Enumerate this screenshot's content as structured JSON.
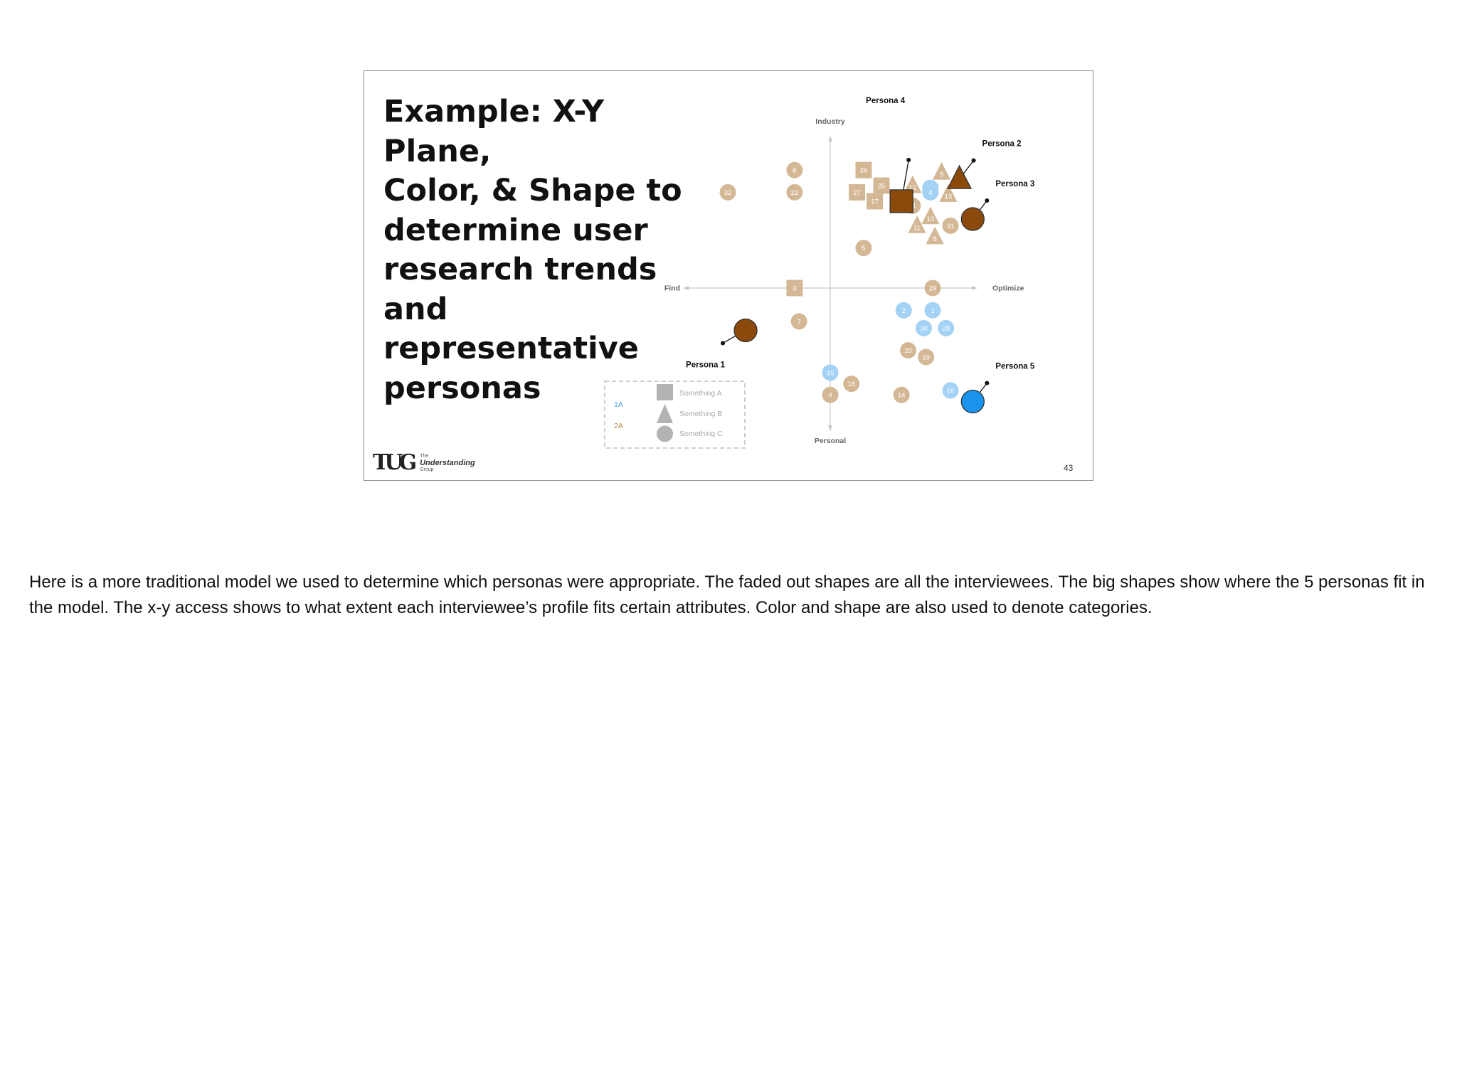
{
  "slide": {
    "title": "Example: X-Y Plane,\nColor, & Shape to\ndetermine user\nresearch trends\nand representative\npersonas",
    "page_number": "43",
    "logo": {
      "mark": "TUG",
      "line1": "The",
      "line2": "Understanding",
      "line3": "Group"
    }
  },
  "notes": "Here is a more traditional model we used to determine which personas were appropriate. The faded out shapes are all the interviewees. The big shapes show where the 5 personas fit in the model. The x-y access shows to what extent each interviewee’s profile fits certain attributes. Color and shape are also used to denote categories.",
  "colors": {
    "tan": "#d4b896",
    "light_blue": "#a3d2f5",
    "brown": "#8b4a0b",
    "bright_blue": "#1a93ee",
    "legend_gray": "#b3b3b3",
    "label_1a": "#4ba3e0",
    "label_2a": "#b8863f"
  },
  "chart_data": {
    "type": "scatter",
    "axes": {
      "top": "Industry",
      "bottom": "Personal",
      "left": "Find",
      "right": "Optimize"
    },
    "legend": {
      "colors": [
        {
          "label": "1A",
          "color": "light_blue"
        },
        {
          "label": "2A",
          "color": "tan"
        }
      ],
      "shapes": [
        {
          "shape": "square",
          "label": "Something A"
        },
        {
          "shape": "triangle",
          "label": "Something B"
        },
        {
          "shape": "circle",
          "label": "Something C"
        }
      ]
    },
    "points": [
      {
        "id": "32",
        "x": -4.6,
        "y": 4.3,
        "shape": "circle",
        "color": "tan"
      },
      {
        "id": "6",
        "x": -1.6,
        "y": 5.3,
        "shape": "circle",
        "color": "tan"
      },
      {
        "id": "22",
        "x": -1.6,
        "y": 4.3,
        "shape": "circle",
        "color": "tan"
      },
      {
        "id": "26",
        "x": 1.5,
        "y": 5.3,
        "shape": "square",
        "color": "tan"
      },
      {
        "id": "25",
        "x": 2.3,
        "y": 4.6,
        "shape": "square",
        "color": "tan"
      },
      {
        "id": "27",
        "x": 1.2,
        "y": 4.3,
        "shape": "square",
        "color": "tan"
      },
      {
        "id": "17",
        "x": 2.0,
        "y": 3.9,
        "shape": "square",
        "color": "tan"
      },
      {
        "id": "12",
        "x": 3.7,
        "y": 4.6,
        "shape": "triangle",
        "color": "tan"
      },
      {
        "id": "9",
        "x": 5.0,
        "y": 5.2,
        "shape": "triangle",
        "color": "tan"
      },
      {
        "id": "2",
        "x": 4.5,
        "y": 4.5,
        "shape": "circle",
        "color": "light_blue"
      },
      {
        "id": "4",
        "x": 4.5,
        "y": 4.3,
        "shape": "circle",
        "color": "light_blue"
      },
      {
        "id": "21",
        "x": 3.7,
        "y": 3.7,
        "shape": "circle",
        "color": "tan"
      },
      {
        "id": "13",
        "x": 5.3,
        "y": 4.2,
        "shape": "triangle",
        "color": "tan"
      },
      {
        "id": "10",
        "x": 4.5,
        "y": 3.2,
        "shape": "triangle",
        "color": "tan"
      },
      {
        "id": "11",
        "x": 3.9,
        "y": 2.8,
        "shape": "triangle",
        "color": "tan"
      },
      {
        "id": "31",
        "x": 5.4,
        "y": 2.8,
        "shape": "circle",
        "color": "tan"
      },
      {
        "id": "8",
        "x": 4.7,
        "y": 2.3,
        "shape": "triangle",
        "color": "tan"
      },
      {
        "id": "5",
        "x": 1.5,
        "y": 1.8,
        "shape": "circle",
        "color": "tan"
      },
      {
        "id": "3",
        "x": -1.6,
        "y": 0.0,
        "shape": "square",
        "color": "tan"
      },
      {
        "id": "29",
        "x": 4.6,
        "y": 0.0,
        "shape": "circle",
        "color": "tan"
      },
      {
        "id": "2",
        "x": 3.3,
        "y": -1.0,
        "shape": "circle",
        "color": "light_blue"
      },
      {
        "id": "1",
        "x": 4.6,
        "y": -1.0,
        "shape": "circle",
        "color": "light_blue"
      },
      {
        "id": "30",
        "x": 4.2,
        "y": -1.8,
        "shape": "circle",
        "color": "light_blue"
      },
      {
        "id": "28",
        "x": 5.2,
        "y": -1.8,
        "shape": "circle",
        "color": "light_blue"
      },
      {
        "id": "7",
        "x": -1.4,
        "y": -1.5,
        "shape": "circle",
        "color": "tan"
      },
      {
        "id": "20",
        "x": 3.5,
        "y": -2.8,
        "shape": "circle",
        "color": "tan"
      },
      {
        "id": "19",
        "x": 4.3,
        "y": -3.1,
        "shape": "circle",
        "color": "tan"
      },
      {
        "id": "15",
        "x": 0.0,
        "y": -3.8,
        "shape": "circle",
        "color": "light_blue"
      },
      {
        "id": "18",
        "x": 0.95,
        "y": -4.3,
        "shape": "circle",
        "color": "tan"
      },
      {
        "id": "4",
        "x": 0.0,
        "y": -4.8,
        "shape": "circle",
        "color": "tan"
      },
      {
        "id": "14",
        "x": 3.2,
        "y": -4.8,
        "shape": "circle",
        "color": "tan"
      },
      {
        "id": "16",
        "x": 5.4,
        "y": -4.6,
        "shape": "circle",
        "color": "light_blue"
      }
    ],
    "personas": [
      {
        "label": "Persona 1",
        "x": -3.8,
        "y": -1.9,
        "shape": "circle",
        "color": "brown",
        "label_side": "below-left"
      },
      {
        "label": "Persona 2",
        "x": 5.8,
        "y": 4.9,
        "shape": "triangle",
        "color": "brown",
        "label_side": "top-right"
      },
      {
        "label": "Persona 3",
        "x": 6.4,
        "y": 3.1,
        "shape": "circle",
        "color": "brown",
        "label_side": "top-right"
      },
      {
        "label": "Persona 4",
        "x": 3.2,
        "y": 3.9,
        "shape": "square",
        "color": "brown",
        "label_side": "top"
      },
      {
        "label": "Persona 5",
        "x": 6.4,
        "y": -5.1,
        "shape": "circle",
        "color": "bright_blue",
        "label_side": "top-right"
      }
    ]
  }
}
